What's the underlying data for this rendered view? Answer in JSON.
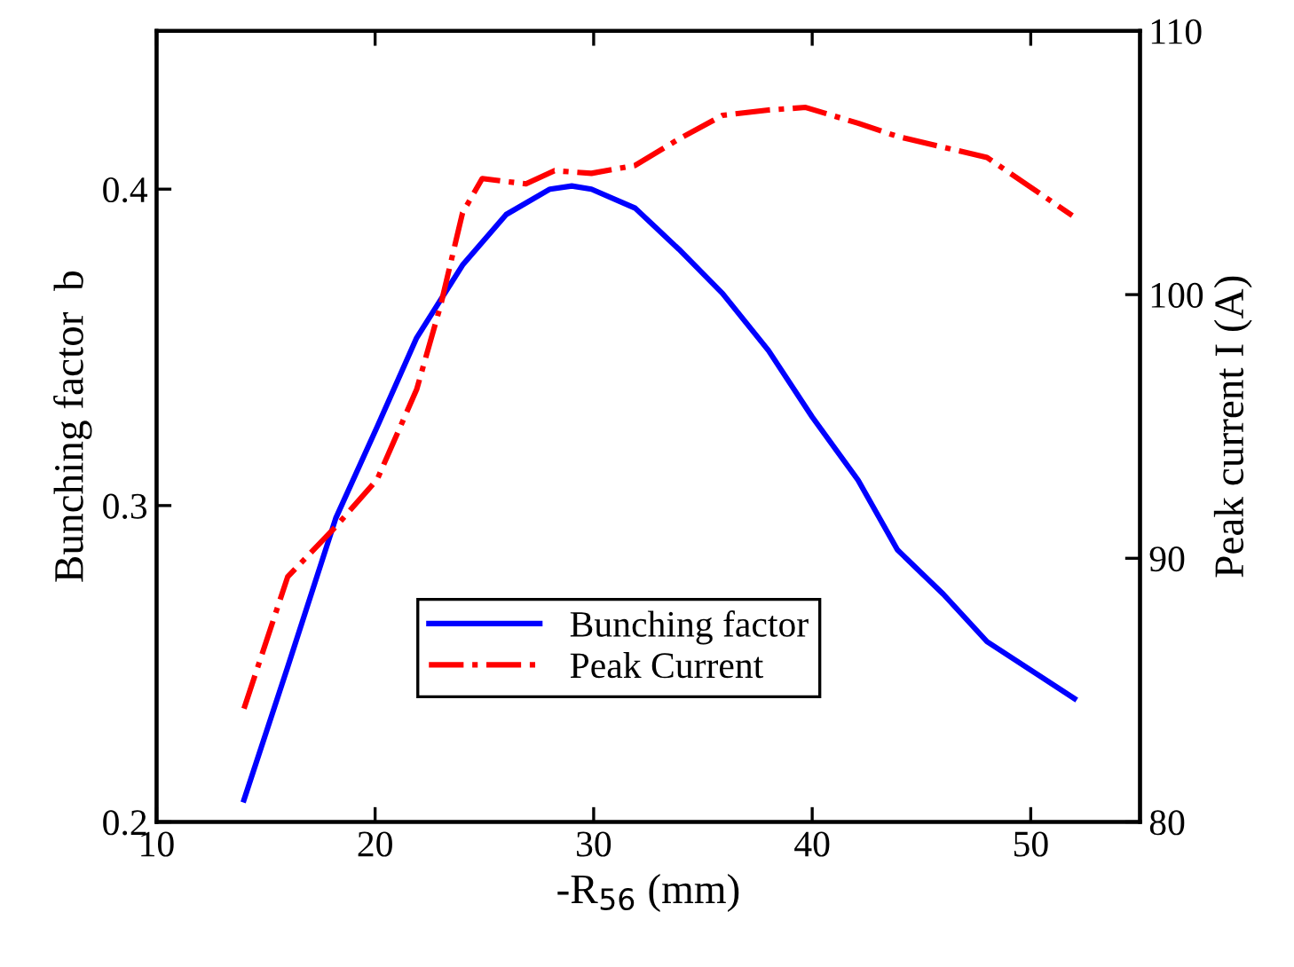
{
  "chart_data": {
    "type": "line",
    "xlabel": "-R$_{56}$ (mm)",
    "ylabel": "Bunching factor  b",
    "y2label": "Peak current I (A)",
    "xlim": [
      10,
      55
    ],
    "xticks": [
      10,
      20,
      30,
      40,
      50
    ],
    "ylim": [
      0.2,
      0.45
    ],
    "yticks": [
      0.2,
      0.3,
      0.4
    ],
    "y2lim": [
      80,
      110
    ],
    "y2ticks": [
      80,
      90,
      100,
      110
    ],
    "legend": "bottom",
    "grid": false,
    "marker": "none",
    "series": [
      {
        "name": "Bunching factor",
        "color": "#0000ff",
        "line_style": "solid",
        "x": [
          14,
          16,
          18.2,
          20.1,
          21.9,
          24,
          26,
          28,
          29,
          29.9,
          31.9,
          33.9,
          35.9,
          38,
          40,
          42.1,
          43.9,
          46,
          48,
          52
        ],
        "values": [
          0.207,
          0.249,
          0.296,
          0.325,
          0.353,
          0.376,
          0.392,
          0.4,
          0.401,
          0.4,
          0.394,
          0.381,
          0.367,
          0.349,
          0.328,
          0.308,
          0.286,
          0.272,
          0.257,
          0.239
        ]
      },
      {
        "name": "Peak Current",
        "color": "#ff0000",
        "line_style": "dashdot",
        "axis": "y2",
        "x": [
          14,
          16,
          18.2,
          20.1,
          21.9,
          23,
          24,
          24.9,
          26.9,
          28.2,
          29.9,
          31.9,
          33.9,
          35.9,
          38,
          39.7,
          42.1,
          43.9,
          48,
          51.9
        ],
        "values": [
          84.3,
          89.3,
          91.2,
          93.0,
          96.4,
          99.6,
          103.1,
          104.4,
          104.2,
          104.7,
          104.6,
          104.9,
          105.9,
          106.8,
          107.0,
          107.1,
          106.5,
          106.0,
          105.2,
          103.0
        ]
      }
    ]
  }
}
